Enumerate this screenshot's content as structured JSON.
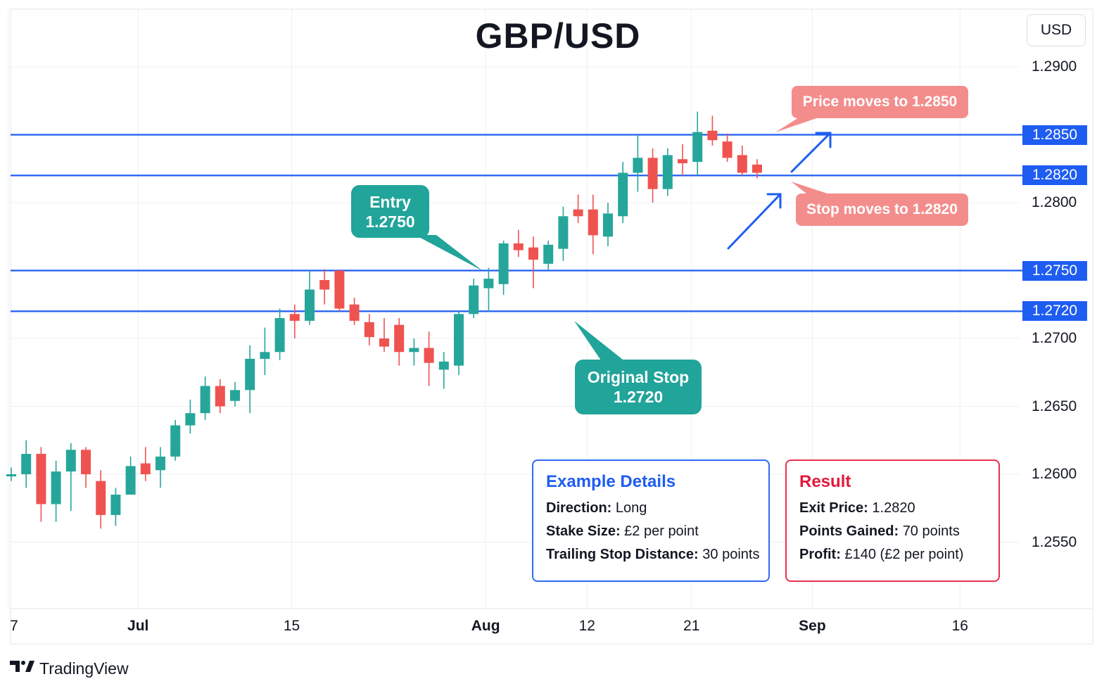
{
  "chart_data": {
    "type": "candlestick",
    "title": "GBP/USD",
    "unit": "USD",
    "ylim": [
      1.2515,
      1.2925
    ],
    "y_ticks": [
      "1.2550",
      "1.2600",
      "1.2650",
      "1.2700",
      "1.2800",
      "1.2900"
    ],
    "x_ticks": [
      {
        "label": "7",
        "bold": false,
        "idx": -0.2
      },
      {
        "label": "Jul",
        "bold": true,
        "idx": 8.5
      },
      {
        "label": "15",
        "bold": false,
        "idx": 18.8
      },
      {
        "label": "Aug",
        "bold": true,
        "idx": 31.8
      },
      {
        "label": "12",
        "bold": false,
        "idx": 38.6
      },
      {
        "label": "21",
        "bold": false,
        "idx": 45.6
      },
      {
        "label": "Sep",
        "bold": true,
        "idx": 53.7
      },
      {
        "label": "16",
        "bold": false,
        "idx": 63.6
      }
    ],
    "candles": [
      {
        "o": 1.26,
        "h": 1.2605,
        "l": 1.2595,
        "c": 1.26
      },
      {
        "o": 1.26,
        "h": 1.2625,
        "l": 1.259,
        "c": 1.2615
      },
      {
        "o": 1.2615,
        "h": 1.262,
        "l": 1.2565,
        "c": 1.2578
      },
      {
        "o": 1.2578,
        "h": 1.261,
        "l": 1.2565,
        "c": 1.2602
      },
      {
        "o": 1.2602,
        "h": 1.2623,
        "l": 1.2573,
        "c": 1.2618
      },
      {
        "o": 1.2618,
        "h": 1.262,
        "l": 1.259,
        "c": 1.26
      },
      {
        "o": 1.2595,
        "h": 1.2603,
        "l": 1.256,
        "c": 1.257
      },
      {
        "o": 1.257,
        "h": 1.259,
        "l": 1.2562,
        "c": 1.2585
      },
      {
        "o": 1.2585,
        "h": 1.2613,
        "l": 1.2585,
        "c": 1.2606
      },
      {
        "o": 1.2608,
        "h": 1.262,
        "l": 1.2595,
        "c": 1.26
      },
      {
        "o": 1.2603,
        "h": 1.262,
        "l": 1.259,
        "c": 1.2613
      },
      {
        "o": 1.2613,
        "h": 1.264,
        "l": 1.261,
        "c": 1.2636
      },
      {
        "o": 1.2636,
        "h": 1.2655,
        "l": 1.263,
        "c": 1.2645
      },
      {
        "o": 1.2645,
        "h": 1.2672,
        "l": 1.264,
        "c": 1.2665
      },
      {
        "o": 1.2665,
        "h": 1.267,
        "l": 1.2645,
        "c": 1.265
      },
      {
        "o": 1.2654,
        "h": 1.2668,
        "l": 1.265,
        "c": 1.2662
      },
      {
        "o": 1.2662,
        "h": 1.2695,
        "l": 1.2645,
        "c": 1.2685
      },
      {
        "o": 1.2685,
        "h": 1.2708,
        "l": 1.2673,
        "c": 1.269
      },
      {
        "o": 1.269,
        "h": 1.2722,
        "l": 1.2684,
        "c": 1.2715
      },
      {
        "o": 1.2718,
        "h": 1.2725,
        "l": 1.27,
        "c": 1.2713
      },
      {
        "o": 1.2713,
        "h": 1.275,
        "l": 1.271,
        "c": 1.2736
      },
      {
        "o": 1.2743,
        "h": 1.2751,
        "l": 1.2725,
        "c": 1.2736
      },
      {
        "o": 1.275,
        "h": 1.275,
        "l": 1.272,
        "c": 1.2722
      },
      {
        "o": 1.2725,
        "h": 1.273,
        "l": 1.271,
        "c": 1.2713
      },
      {
        "o": 1.2712,
        "h": 1.2718,
        "l": 1.2695,
        "c": 1.2701
      },
      {
        "o": 1.27,
        "h": 1.2715,
        "l": 1.269,
        "c": 1.2694
      },
      {
        "o": 1.271,
        "h": 1.2715,
        "l": 1.268,
        "c": 1.269
      },
      {
        "o": 1.269,
        "h": 1.27,
        "l": 1.268,
        "c": 1.2693
      },
      {
        "o": 1.2693,
        "h": 1.2705,
        "l": 1.2665,
        "c": 1.2682
      },
      {
        "o": 1.2677,
        "h": 1.269,
        "l": 1.2663,
        "c": 1.2683
      },
      {
        "o": 1.268,
        "h": 1.272,
        "l": 1.2673,
        "c": 1.2718
      },
      {
        "o": 1.2718,
        "h": 1.2744,
        "l": 1.2715,
        "c": 1.2739
      },
      {
        "o": 1.2737,
        "h": 1.2752,
        "l": 1.272,
        "c": 1.2744
      },
      {
        "o": 1.274,
        "h": 1.2772,
        "l": 1.2732,
        "c": 1.277
      },
      {
        "o": 1.277,
        "h": 1.278,
        "l": 1.276,
        "c": 1.2765
      },
      {
        "o": 1.2767,
        "h": 1.2775,
        "l": 1.2737,
        "c": 1.2758
      },
      {
        "o": 1.2755,
        "h": 1.2772,
        "l": 1.275,
        "c": 1.2769
      },
      {
        "o": 1.2766,
        "h": 1.2797,
        "l": 1.2757,
        "c": 1.279
      },
      {
        "o": 1.2795,
        "h": 1.2806,
        "l": 1.2785,
        "c": 1.279
      },
      {
        "o": 1.2795,
        "h": 1.2806,
        "l": 1.2762,
        "c": 1.2776
      },
      {
        "o": 1.2775,
        "h": 1.28,
        "l": 1.2768,
        "c": 1.2792
      },
      {
        "o": 1.279,
        "h": 1.283,
        "l": 1.2785,
        "c": 1.2822
      },
      {
        "o": 1.2822,
        "h": 1.285,
        "l": 1.2808,
        "c": 1.2833
      },
      {
        "o": 1.2833,
        "h": 1.284,
        "l": 1.28,
        "c": 1.281
      },
      {
        "o": 1.281,
        "h": 1.284,
        "l": 1.2805,
        "c": 1.2835
      },
      {
        "o": 1.2832,
        "h": 1.2843,
        "l": 1.282,
        "c": 1.2829
      },
      {
        "o": 1.283,
        "h": 1.2867,
        "l": 1.282,
        "c": 1.2852
      },
      {
        "o": 1.2853,
        "h": 1.2864,
        "l": 1.2842,
        "c": 1.2846
      },
      {
        "o": 1.2845,
        "h": 1.2851,
        "l": 1.283,
        "c": 1.2833
      },
      {
        "o": 1.2835,
        "h": 1.2842,
        "l": 1.282,
        "c": 1.2822
      },
      {
        "o": 1.2828,
        "h": 1.2832,
        "l": 1.2818,
        "c": 1.2822
      }
    ],
    "levels": [
      {
        "value": 1.285,
        "label": "1.2850"
      },
      {
        "value": 1.282,
        "label": "1.2820"
      },
      {
        "value": 1.275,
        "label": "1.2750"
      },
      {
        "value": 1.272,
        "label": "1.2720"
      }
    ],
    "colors": {
      "up": "#26a69a",
      "down": "#ef5350",
      "level": "#1e5cf2",
      "grid": "#eef0f3",
      "callout_teal": "#21a49a",
      "callout_red": "#f38d8c"
    }
  },
  "callouts": {
    "entry": {
      "line1": "Entry",
      "line2": "1.2750"
    },
    "original_stop": {
      "line1": "Original Stop",
      "line2": "1.2720"
    },
    "price_moves": "Price moves to 1.2850",
    "stop_moves": "Stop moves to 1.2820"
  },
  "example_details": {
    "title": "Example Details",
    "rows": [
      {
        "label": "Direction:",
        "value": "Long"
      },
      {
        "label": "Stake Size:",
        "value": "£2 per point"
      },
      {
        "label": "Trailing Stop Distance:",
        "value": "30 points"
      }
    ]
  },
  "result": {
    "title": "Result",
    "rows": [
      {
        "label": "Exit Price:",
        "value": "1.2820"
      },
      {
        "label": "Points Gained:",
        "value": "70 points"
      },
      {
        "label": "Profit:",
        "value": "£140 (£2 per point)"
      }
    ]
  },
  "brand": {
    "name": "TradingView",
    "logo": "tradingview-logo"
  }
}
